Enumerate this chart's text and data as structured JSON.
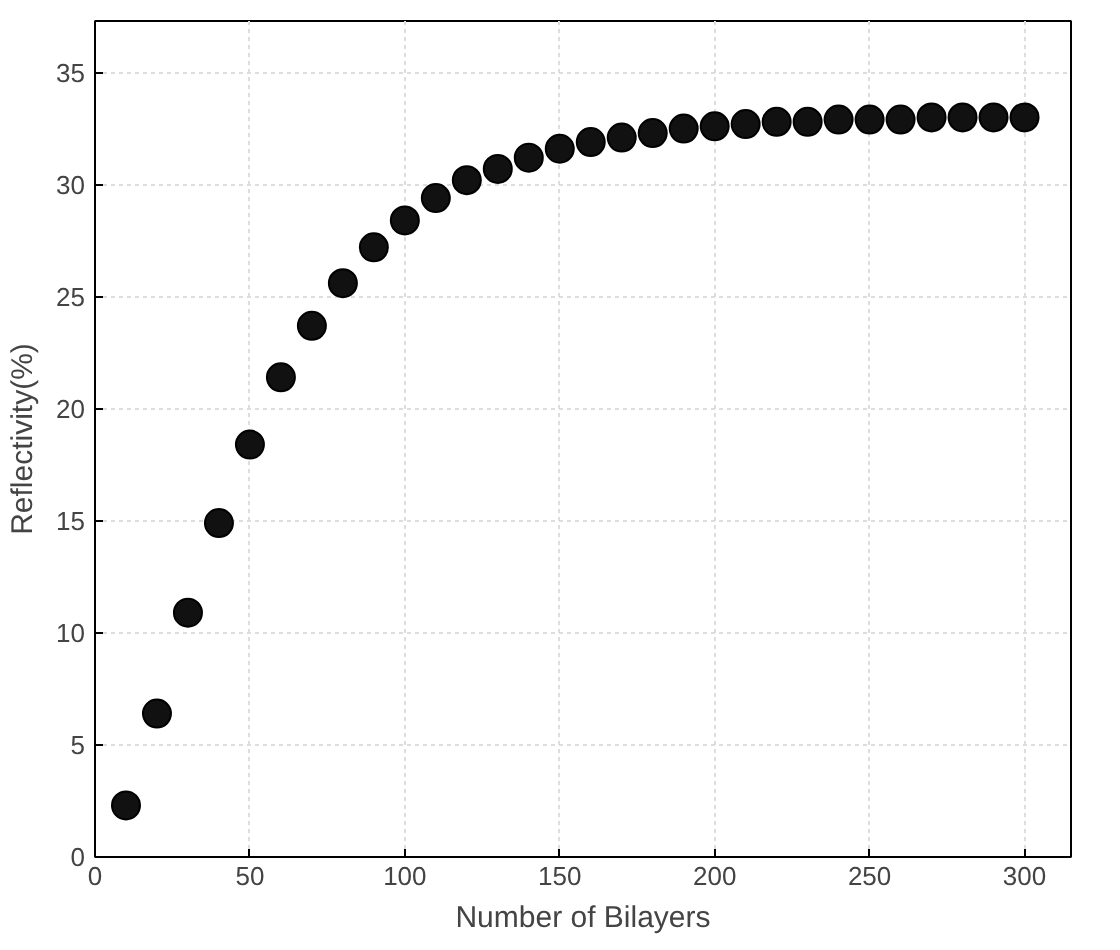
{
  "chart_data": {
    "type": "scatter",
    "xlabel": "Number of Bilayers",
    "ylabel": "Reflectivity(%)",
    "x": [
      10,
      20,
      30,
      40,
      50,
      60,
      70,
      80,
      90,
      100,
      110,
      120,
      130,
      140,
      150,
      160,
      170,
      180,
      190,
      200,
      210,
      220,
      230,
      240,
      250,
      260,
      270,
      280,
      290,
      300
    ],
    "series": [
      {
        "color": "#111111",
        "values": [
          2.3,
          6.4,
          10.9,
          14.9,
          18.4,
          21.4,
          23.7,
          25.6,
          27.2,
          28.4,
          29.4,
          30.2,
          30.7,
          31.2,
          31.6,
          31.9,
          32.1,
          32.3,
          32.5,
          32.6,
          32.7,
          32.8,
          32.8,
          32.9,
          32.9,
          32.9,
          33.0,
          33.0,
          33.0,
          33.0
        ]
      }
    ],
    "xlim": [
      0,
      315
    ],
    "ylim": [
      0,
      37.3
    ],
    "xticks": [
      0,
      50,
      100,
      150,
      200,
      250,
      300
    ],
    "yticks": [
      0,
      5,
      10,
      15,
      20,
      25,
      30,
      35
    ],
    "grid": true,
    "marker": "circle"
  }
}
